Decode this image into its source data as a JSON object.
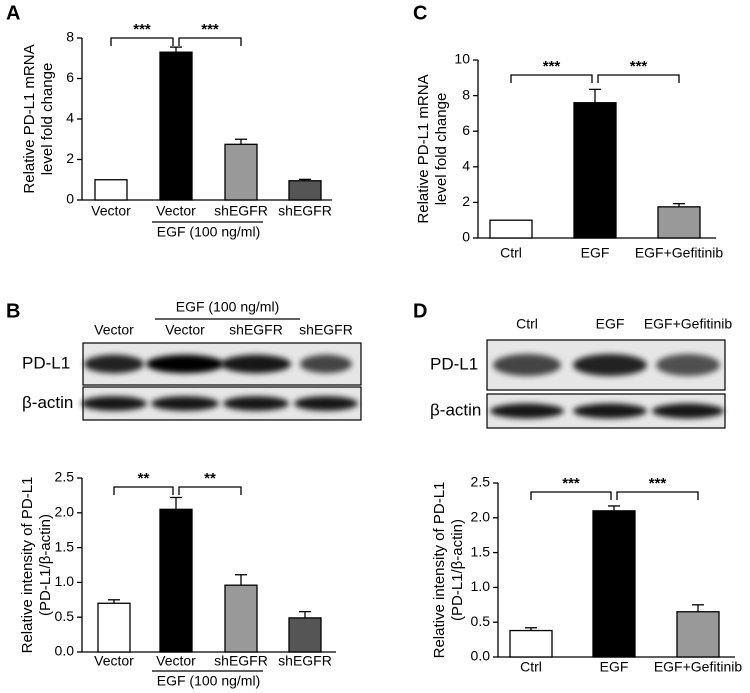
{
  "panels": [
    "A",
    "B",
    "C",
    "D"
  ],
  "chart_data": [
    {
      "type": "bar",
      "ylabel": [
        "Relative PD-L1 mRNA",
        "level fold change"
      ],
      "categories": [
        "Vector",
        "Vector",
        "shEGFR",
        "shEGFR"
      ],
      "group_label": "EGF (100 ng/ml)",
      "values": [
        1.0,
        7.3,
        2.75,
        0.95
      ],
      "errors": [
        0,
        0.25,
        0.25,
        0.07
      ],
      "colors": [
        "#ffffff",
        "#000000",
        "#999999",
        "#555555"
      ],
      "ylim": [
        0,
        8
      ],
      "yticks": [
        0,
        2,
        4,
        6,
        8
      ],
      "annotations": [
        "***",
        "***"
      ]
    },
    {
      "type": "bar",
      "ylabel": [
        "Relative intensity of PD-L1",
        "(PD-L1/β-actin)"
      ],
      "categories": [
        "Vector",
        "Vector",
        "shEGFR",
        "shEGFR"
      ],
      "group_label": "EGF (100 ng/ml)",
      "values": [
        0.7,
        2.05,
        0.96,
        0.49
      ],
      "errors": [
        0.05,
        0.17,
        0.15,
        0.09
      ],
      "colors": [
        "#ffffff",
        "#000000",
        "#999999",
        "#555555"
      ],
      "ylim": [
        0,
        2.5
      ],
      "yticks": [
        {
          "value": 0,
          "label": "0.0"
        },
        0.5,
        {
          "value": 1,
          "label": "1.0"
        },
        1.5,
        {
          "value": 2,
          "label": "2.0"
        },
        2.5
      ],
      "annotations": [
        "**",
        "**"
      ]
    },
    {
      "type": "bar",
      "ylabel": [
        "Relative PD-L1 mRNA",
        "level fold change"
      ],
      "categories": [
        "Ctrl",
        "EGF",
        "EGF+Gefitinib"
      ],
      "values": [
        1.0,
        7.6,
        1.75
      ],
      "errors": [
        0,
        0.75,
        0.18
      ],
      "colors": [
        "#ffffff",
        "#000000",
        "#999999"
      ],
      "ylim": [
        0,
        10
      ],
      "yticks": [
        0,
        2,
        4,
        6,
        8,
        10
      ],
      "annotations": [
        "***",
        "***"
      ]
    },
    {
      "type": "bar",
      "ylabel": [
        "Relative intensity of PD-L1",
        "(PD-L1/β-actin)"
      ],
      "categories": [
        "Ctrl",
        "EGF",
        "EGF+Gefitinib"
      ],
      "values": [
        0.38,
        2.1,
        0.65
      ],
      "errors": [
        0.04,
        0.07,
        0.1
      ],
      "colors": [
        "#ffffff",
        "#000000",
        "#999999"
      ],
      "ylim": [
        0,
        2.5
      ],
      "yticks": [
        {
          "value": 0,
          "label": "0.0"
        },
        0.5,
        {
          "value": 1,
          "label": "1.0"
        },
        1.5,
        {
          "value": 2,
          "label": "2.0"
        },
        2.5
      ],
      "annotations": [
        "***",
        "***"
      ]
    }
  ],
  "blots": [
    {
      "group_label": "EGF (100 ng/ml)",
      "lanes": [
        "Vector",
        "Vector",
        "shEGFR",
        "shEGFR"
      ],
      "rows": [
        "PD-L1",
        "β-actin"
      ]
    },
    {
      "lanes": [
        "Ctrl",
        "EGF",
        "EGF+Gefitinib"
      ],
      "rows": [
        "PD-L1",
        "β-actin"
      ]
    }
  ]
}
